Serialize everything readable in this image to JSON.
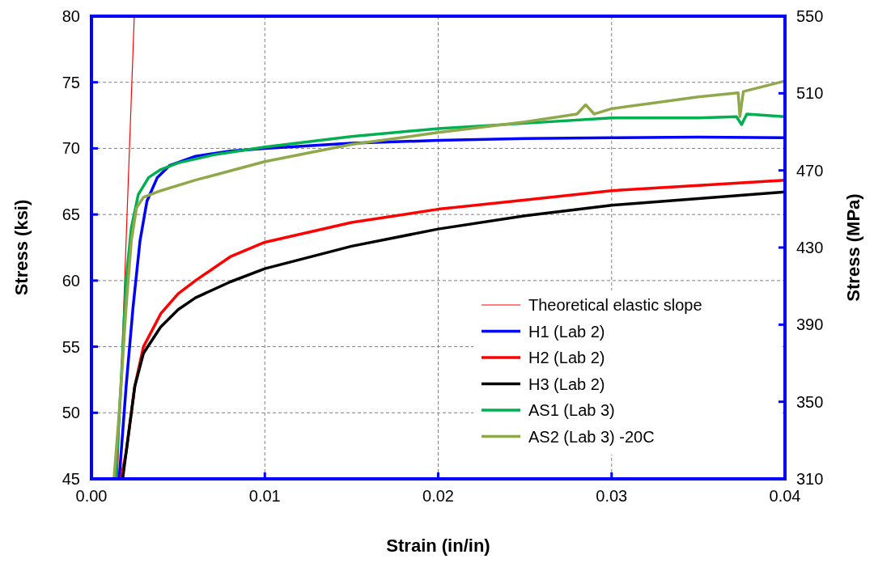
{
  "chart_data": {
    "type": "line",
    "xlabel": "Strain (in/in)",
    "ylabel": "Stress (ksi)",
    "y2label": "Stress (MPa)",
    "xlim": [
      0,
      0.04
    ],
    "xticks": [
      {
        "value": 0,
        "label": "0.00"
      },
      0.01,
      0.02,
      0.03,
      {
        "value": 0.04,
        "label": "0.04"
      }
    ],
    "ylim": [
      45,
      80
    ],
    "yticks": [
      45,
      50,
      55,
      60,
      65,
      70,
      75,
      80
    ],
    "y2lim": [
      310,
      550
    ],
    "y2ticks": [
      310,
      350,
      390,
      430,
      470,
      510,
      550
    ],
    "grid": true,
    "legend": "bottom right",
    "line_style": "solid",
    "marker": "none",
    "series": [
      {
        "name": "Theoretical elastic slope",
        "color": "#ff0000",
        "x": [
          0.0015,
          0.00247
        ],
        "values": [
          45,
          80
        ]
      },
      {
        "name": "H1 (Lab 2)",
        "color": "#0000ff",
        "x": [
          0.0016,
          0.002,
          0.0024,
          0.0028,
          0.0032,
          0.0038,
          0.0045,
          0.006,
          0.008,
          0.01,
          0.015,
          0.02,
          0.025,
          0.03,
          0.035,
          0.04
        ],
        "values": [
          45,
          52,
          58,
          63,
          66,
          67.8,
          68.7,
          69.4,
          69.8,
          70,
          70.4,
          70.6,
          70.75,
          70.8,
          70.85,
          70.8
        ]
      },
      {
        "name": "H2 (Lab 2)",
        "color": "#ff0000",
        "x": [
          0.0017,
          0.002,
          0.0025,
          0.003,
          0.004,
          0.005,
          0.006,
          0.008,
          0.01,
          0.015,
          0.02,
          0.025,
          0.03,
          0.035,
          0.04
        ],
        "values": [
          45,
          47,
          52,
          55,
          57.5,
          59,
          60,
          61.8,
          62.9,
          64.4,
          65.4,
          66.1,
          66.8,
          67.2,
          67.6
        ]
      },
      {
        "name": "H3 (Lab 2)",
        "color": "#000000",
        "x": [
          0.0018,
          0.002,
          0.0025,
          0.003,
          0.004,
          0.005,
          0.006,
          0.008,
          0.01,
          0.015,
          0.02,
          0.025,
          0.03,
          0.035,
          0.04
        ],
        "values": [
          45,
          47,
          52,
          54.5,
          56.5,
          57.8,
          58.7,
          59.9,
          60.9,
          62.6,
          63.9,
          64.9,
          65.7,
          66.2,
          66.7
        ]
      },
      {
        "name": "AS1 (Lab 3)",
        "color": "#00b050",
        "x": [
          0.0014,
          0.0017,
          0.002,
          0.0023,
          0.0027,
          0.0033,
          0.004,
          0.005,
          0.007,
          0.01,
          0.015,
          0.02,
          0.025,
          0.03,
          0.035,
          0.0372,
          0.0375,
          0.0378,
          0.04
        ],
        "values": [
          45,
          52,
          60,
          64,
          66.5,
          67.8,
          68.4,
          68.9,
          69.5,
          70.1,
          70.9,
          71.5,
          71.9,
          72.3,
          72.3,
          72.4,
          71.8,
          72.6,
          72.4
        ]
      },
      {
        "name": "AS2 (Lab 3) -20C",
        "color": "#8fa94a",
        "x": [
          0.0013,
          0.0016,
          0.002,
          0.0023,
          0.0026,
          0.003,
          0.004,
          0.006,
          0.008,
          0.01,
          0.015,
          0.02,
          0.025,
          0.028,
          0.0285,
          0.029,
          0.03,
          0.035,
          0.0373,
          0.0374,
          0.0376,
          0.04
        ],
        "values": [
          45,
          50,
          58,
          63,
          65.5,
          66.3,
          66.8,
          67.6,
          68.3,
          69,
          70.3,
          71.2,
          72,
          72.6,
          73.3,
          72.6,
          73,
          73.9,
          74.2,
          72.4,
          74.3,
          75.1
        ]
      }
    ]
  }
}
